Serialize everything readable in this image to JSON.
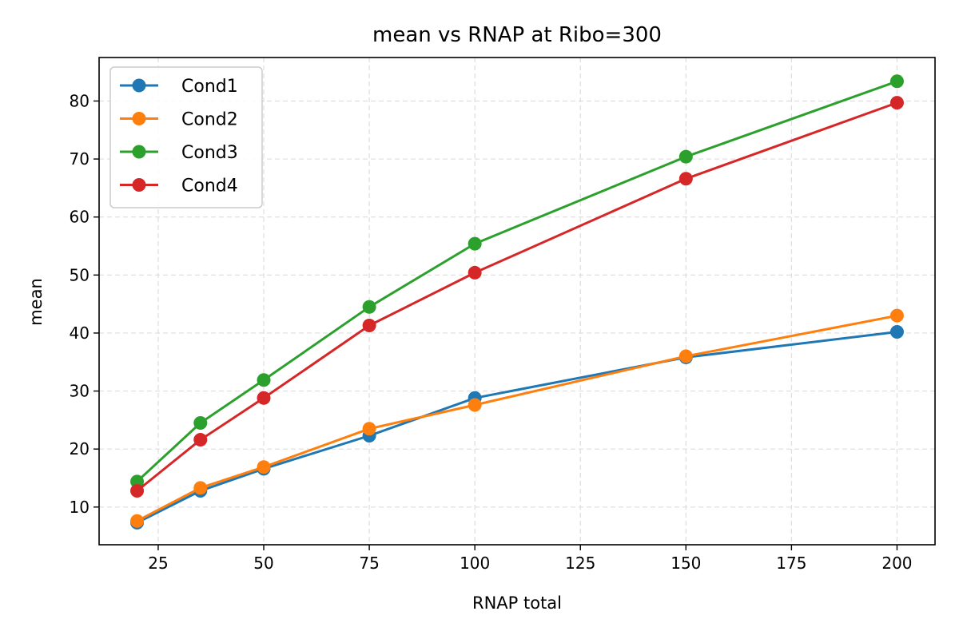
{
  "chart_data": {
    "type": "line",
    "title": "mean vs RNAP at Ribo=300",
    "xlabel": "RNAP total",
    "ylabel": "mean",
    "x": [
      20,
      35,
      50,
      75,
      100,
      150,
      200
    ],
    "xlim": [
      11,
      209
    ],
    "ylim": [
      3.5,
      87.5
    ],
    "xticks": [
      25,
      50,
      75,
      100,
      125,
      150,
      175,
      200
    ],
    "yticks": [
      10,
      20,
      30,
      40,
      50,
      60,
      70,
      80
    ],
    "grid": true,
    "legend_position": "top-left",
    "series": [
      {
        "name": "Cond1",
        "color": "#1f77b4",
        "values": [
          7.3,
          12.8,
          16.6,
          22.3,
          28.8,
          35.8,
          40.2
        ]
      },
      {
        "name": "Cond2",
        "color": "#ff7f0e",
        "values": [
          7.6,
          13.3,
          16.9,
          23.5,
          27.6,
          36.0,
          43.0
        ]
      },
      {
        "name": "Cond3",
        "color": "#2ca02c",
        "values": [
          14.4,
          24.5,
          31.9,
          44.5,
          55.4,
          70.4,
          83.4
        ]
      },
      {
        "name": "Cond4",
        "color": "#d62728",
        "values": [
          12.8,
          21.6,
          28.8,
          41.3,
          50.4,
          66.6,
          79.7
        ]
      }
    ]
  }
}
